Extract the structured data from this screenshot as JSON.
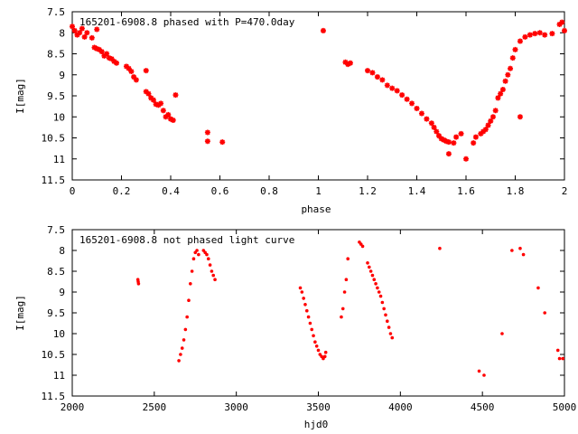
{
  "chart_data": [
    {
      "type": "scatter",
      "title": "165201-6908.8 phased with P=470.0day",
      "xlabel": "phase",
      "ylabel": "I[mag]",
      "xlim": [
        0,
        2
      ],
      "ylim": [
        11.5,
        7.5
      ],
      "y_inverted": true,
      "xticks": [
        "0",
        "0.2",
        "0.4",
        "0.6",
        "0.8",
        "1",
        "1.2",
        "1.4",
        "1.6",
        "1.8",
        "2"
      ],
      "yticks": [
        "7.5",
        "8",
        "8.5",
        "9",
        "9.5",
        "10",
        "10.5",
        "11",
        "11.5"
      ],
      "marker_color": "#ff0000",
      "marker": "star",
      "points": [
        [
          0.0,
          7.85
        ],
        [
          0.01,
          7.95
        ],
        [
          0.02,
          8.05
        ],
        [
          0.03,
          8.0
        ],
        [
          0.04,
          7.9
        ],
        [
          0.05,
          8.1
        ],
        [
          0.06,
          8.0
        ],
        [
          0.08,
          8.12
        ],
        [
          0.09,
          8.35
        ],
        [
          0.1,
          8.38
        ],
        [
          0.1,
          7.92
        ],
        [
          0.11,
          8.4
        ],
        [
          0.12,
          8.45
        ],
        [
          0.13,
          8.55
        ],
        [
          0.14,
          8.5
        ],
        [
          0.15,
          8.6
        ],
        [
          0.16,
          8.62
        ],
        [
          0.17,
          8.68
        ],
        [
          0.18,
          8.72
        ],
        [
          0.22,
          8.8
        ],
        [
          0.23,
          8.85
        ],
        [
          0.24,
          8.92
        ],
        [
          0.25,
          9.05
        ],
        [
          0.26,
          9.12
        ],
        [
          0.3,
          8.9
        ],
        [
          0.3,
          9.4
        ],
        [
          0.31,
          9.45
        ],
        [
          0.32,
          9.55
        ],
        [
          0.33,
          9.6
        ],
        [
          0.34,
          9.7
        ],
        [
          0.35,
          9.72
        ],
        [
          0.36,
          9.68
        ],
        [
          0.37,
          9.85
        ],
        [
          0.38,
          10.0
        ],
        [
          0.39,
          9.95
        ],
        [
          0.4,
          10.05
        ],
        [
          0.41,
          10.08
        ],
        [
          0.42,
          9.48
        ],
        [
          0.55,
          10.37
        ],
        [
          0.55,
          10.58
        ],
        [
          0.61,
          10.6
        ],
        [
          1.02,
          7.95
        ],
        [
          1.11,
          8.7
        ],
        [
          1.12,
          8.75
        ],
        [
          1.13,
          8.72
        ],
        [
          1.2,
          8.9
        ],
        [
          1.22,
          8.95
        ],
        [
          1.24,
          9.05
        ],
        [
          1.26,
          9.12
        ],
        [
          1.28,
          9.25
        ],
        [
          1.3,
          9.32
        ],
        [
          1.32,
          9.38
        ],
        [
          1.34,
          9.48
        ],
        [
          1.36,
          9.58
        ],
        [
          1.38,
          9.68
        ],
        [
          1.4,
          9.8
        ],
        [
          1.42,
          9.92
        ],
        [
          1.44,
          10.05
        ],
        [
          1.46,
          10.15
        ],
        [
          1.47,
          10.25
        ],
        [
          1.48,
          10.35
        ],
        [
          1.49,
          10.45
        ],
        [
          1.5,
          10.52
        ],
        [
          1.51,
          10.55
        ],
        [
          1.52,
          10.58
        ],
        [
          1.53,
          10.6
        ],
        [
          1.55,
          10.62
        ],
        [
          1.56,
          10.48
        ],
        [
          1.58,
          10.4
        ],
        [
          1.6,
          11.0
        ],
        [
          1.53,
          10.88
        ],
        [
          1.63,
          10.62
        ],
        [
          1.64,
          10.48
        ],
        [
          1.66,
          10.4
        ],
        [
          1.67,
          10.35
        ],
        [
          1.68,
          10.3
        ],
        [
          1.69,
          10.2
        ],
        [
          1.7,
          10.1
        ],
        [
          1.71,
          10.0
        ],
        [
          1.72,
          9.85
        ],
        [
          1.73,
          9.55
        ],
        [
          1.74,
          9.45
        ],
        [
          1.75,
          9.35
        ],
        [
          1.76,
          9.15
        ],
        [
          1.77,
          9.0
        ],
        [
          1.78,
          8.85
        ],
        [
          1.79,
          8.6
        ],
        [
          1.8,
          8.4
        ],
        [
          1.82,
          10.0
        ],
        [
          1.82,
          8.2
        ],
        [
          1.84,
          8.1
        ],
        [
          1.86,
          8.05
        ],
        [
          1.88,
          8.02
        ],
        [
          1.9,
          8.0
        ],
        [
          1.92,
          8.05
        ],
        [
          1.95,
          8.02
        ],
        [
          1.98,
          7.8
        ],
        [
          1.99,
          7.75
        ],
        [
          2.0,
          7.95
        ]
      ]
    },
    {
      "type": "scatter",
      "title": "165201-6908.8 not phased light curve",
      "xlabel": "hjd0",
      "ylabel": "I[mag]",
      "xlim": [
        2000,
        5000
      ],
      "ylim": [
        11.5,
        7.5
      ],
      "y_inverted": true,
      "xticks": [
        "2000",
        "2500",
        "3000",
        "3500",
        "4000",
        "4500",
        "5000"
      ],
      "yticks": [
        "7.5",
        "8",
        "8.5",
        "9",
        "9.5",
        "10",
        "10.5",
        "11",
        "11.5"
      ],
      "marker_color": "#ff0000",
      "marker": "dot",
      "points": [
        [
          2400,
          8.7
        ],
        [
          2402,
          8.75
        ],
        [
          2404,
          8.8
        ],
        [
          2650,
          10.65
        ],
        [
          2660,
          10.5
        ],
        [
          2670,
          10.35
        ],
        [
          2680,
          10.15
        ],
        [
          2690,
          9.9
        ],
        [
          2700,
          9.6
        ],
        [
          2710,
          9.2
        ],
        [
          2720,
          8.8
        ],
        [
          2730,
          8.5
        ],
        [
          2740,
          8.2
        ],
        [
          2750,
          8.05
        ],
        [
          2760,
          8.0
        ],
        [
          2770,
          8.1
        ],
        [
          2800,
          8.0
        ],
        [
          2810,
          8.05
        ],
        [
          2820,
          8.1
        ],
        [
          2830,
          8.2
        ],
        [
          2840,
          8.35
        ],
        [
          2850,
          8.5
        ],
        [
          2860,
          8.6
        ],
        [
          2870,
          8.7
        ],
        [
          3390,
          8.9
        ],
        [
          3400,
          9.0
        ],
        [
          3410,
          9.15
        ],
        [
          3420,
          9.3
        ],
        [
          3430,
          9.45
        ],
        [
          3440,
          9.6
        ],
        [
          3450,
          9.75
        ],
        [
          3460,
          9.9
        ],
        [
          3470,
          10.05
        ],
        [
          3480,
          10.2
        ],
        [
          3490,
          10.3
        ],
        [
          3500,
          10.4
        ],
        [
          3510,
          10.5
        ],
        [
          3520,
          10.55
        ],
        [
          3530,
          10.6
        ],
        [
          3540,
          10.55
        ],
        [
          3545,
          10.45
        ],
        [
          3640,
          9.6
        ],
        [
          3650,
          9.4
        ],
        [
          3660,
          9.0
        ],
        [
          3670,
          8.7
        ],
        [
          3680,
          8.2
        ],
        [
          3750,
          7.8
        ],
        [
          3760,
          7.85
        ],
        [
          3770,
          7.9
        ],
        [
          3800,
          8.3
        ],
        [
          3810,
          8.4
        ],
        [
          3820,
          8.5
        ],
        [
          3830,
          8.6
        ],
        [
          3840,
          8.7
        ],
        [
          3850,
          8.8
        ],
        [
          3860,
          8.9
        ],
        [
          3870,
          9.0
        ],
        [
          3880,
          9.1
        ],
        [
          3890,
          9.25
        ],
        [
          3900,
          9.4
        ],
        [
          3910,
          9.55
        ],
        [
          3920,
          9.7
        ],
        [
          3930,
          9.85
        ],
        [
          3940,
          10.0
        ],
        [
          3950,
          10.1
        ],
        [
          4240,
          7.95
        ],
        [
          4480,
          10.9
        ],
        [
          4510,
          11.0
        ],
        [
          4620,
          10.0
        ],
        [
          4680,
          8.0
        ],
        [
          4730,
          7.95
        ],
        [
          4750,
          8.1
        ],
        [
          4840,
          8.9
        ],
        [
          4880,
          9.5
        ],
        [
          4960,
          10.4
        ],
        [
          4970,
          10.6
        ],
        [
          4990,
          10.6
        ]
      ]
    }
  ]
}
